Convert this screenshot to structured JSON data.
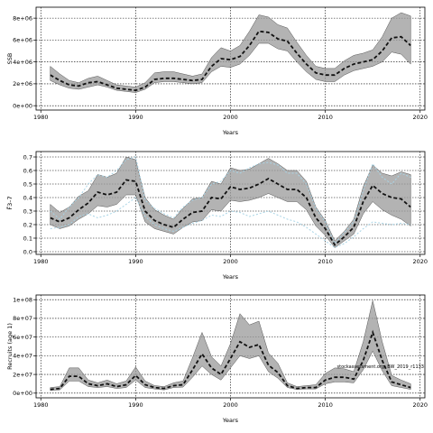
{
  "chart_data": [
    {
      "type": "line",
      "xlabel": "Years",
      "ylabel": "SSB",
      "xlim": [
        1979.5,
        2020.5
      ],
      "ylim": [
        -400000,
        9000000
      ],
      "xticks": [
        1980,
        1990,
        2000,
        2010,
        2020
      ],
      "yticks": [
        0,
        2000000,
        4000000,
        6000000,
        8000000
      ],
      "ytick_labels": [
        "0e+00",
        "2e+06",
        "4e+06",
        "6e+06",
        "8e+06"
      ],
      "grid": true,
      "x": [
        1981,
        1982,
        1983,
        1984,
        1985,
        1986,
        1987,
        1988,
        1989,
        1990,
        1991,
        1992,
        1993,
        1994,
        1995,
        1996,
        1997,
        1998,
        1999,
        2000,
        2001,
        2002,
        2003,
        2004,
        2005,
        2006,
        2007,
        2008,
        2009,
        2010,
        2011,
        2012,
        2013,
        2014,
        2015,
        2016,
        2017,
        2018,
        2019
      ],
      "series": [
        {
          "role": "median",
          "values": [
            2800000,
            2300000,
            1900000,
            1800000,
            2100000,
            2200000,
            1900000,
            1600000,
            1500000,
            1400000,
            1700000,
            2400000,
            2500000,
            2500000,
            2400000,
            2300000,
            2400000,
            3600000,
            4300000,
            4200000,
            4500000,
            5500000,
            6800000,
            6700000,
            6100000,
            5900000,
            4800000,
            3800000,
            3000000,
            2800000,
            2800000,
            3400000,
            3800000,
            4000000,
            4200000,
            5000000,
            6200000,
            6300000,
            5500000
          ]
        },
        {
          "role": "lower",
          "values": [
            2300000,
            1900000,
            1600000,
            1500000,
            1700000,
            1900000,
            1700000,
            1400000,
            1300000,
            1200000,
            1500000,
            2100000,
            2200000,
            2200000,
            2100000,
            2000000,
            2100000,
            3100000,
            3600000,
            3500000,
            3800000,
            4600000,
            5700000,
            5700000,
            5200000,
            5000000,
            4000000,
            3100000,
            2400000,
            2200000,
            2200000,
            2800000,
            3200000,
            3400000,
            3600000,
            4000000,
            4900000,
            4700000,
            3800000
          ]
        },
        {
          "role": "upper",
          "values": [
            3600000,
            2900000,
            2300000,
            2100000,
            2500000,
            2700000,
            2300000,
            1900000,
            1800000,
            1700000,
            2100000,
            3000000,
            3100000,
            3100000,
            2900000,
            2700000,
            2900000,
            4400000,
            5300000,
            5000000,
            5500000,
            6800000,
            8300000,
            8100000,
            7400000,
            7100000,
            5800000,
            4600000,
            3600000,
            3400000,
            3400000,
            4100000,
            4600000,
            4800000,
            5100000,
            6300000,
            8000000,
            8500000,
            8200000
          ]
        }
      ]
    },
    {
      "type": "line",
      "xlabel": "Years",
      "ylabel": "F̄3–7",
      "xlim": [
        1979.5,
        2020.5
      ],
      "ylim": [
        -0.02,
        0.74
      ],
      "xticks": [
        1980,
        1990,
        2000,
        2010,
        2020
      ],
      "yticks": [
        0.0,
        0.1,
        0.2,
        0.3,
        0.4,
        0.5,
        0.6,
        0.7
      ],
      "ytick_labels": [
        "0.0",
        "0.1",
        "0.2",
        "0.3",
        "0.4",
        "0.5",
        "0.6",
        "0.7"
      ],
      "grid": true,
      "x": [
        1981,
        1982,
        1983,
        1984,
        1985,
        1986,
        1987,
        1988,
        1989,
        1990,
        1991,
        1992,
        1993,
        1994,
        1995,
        1996,
        1997,
        1998,
        1999,
        2000,
        2001,
        2002,
        2003,
        2004,
        2005,
        2006,
        2007,
        2008,
        2009,
        2010,
        2011,
        2012,
        2013,
        2014,
        2015,
        2016,
        2017,
        2018,
        2019
      ],
      "series": [
        {
          "role": "median",
          "values": [
            0.25,
            0.22,
            0.25,
            0.31,
            0.36,
            0.44,
            0.42,
            0.44,
            0.53,
            0.52,
            0.3,
            0.23,
            0.2,
            0.18,
            0.24,
            0.29,
            0.3,
            0.4,
            0.39,
            0.48,
            0.46,
            0.47,
            0.5,
            0.54,
            0.5,
            0.46,
            0.46,
            0.4,
            0.25,
            0.17,
            0.05,
            0.11,
            0.18,
            0.37,
            0.49,
            0.43,
            0.4,
            0.39,
            0.33
          ]
        },
        {
          "role": "lower",
          "values": [
            0.2,
            0.17,
            0.19,
            0.24,
            0.28,
            0.34,
            0.33,
            0.35,
            0.42,
            0.42,
            0.22,
            0.17,
            0.15,
            0.13,
            0.18,
            0.22,
            0.23,
            0.31,
            0.3,
            0.38,
            0.37,
            0.38,
            0.4,
            0.43,
            0.4,
            0.37,
            0.37,
            0.31,
            0.19,
            0.12,
            0.03,
            0.08,
            0.13,
            0.28,
            0.37,
            0.31,
            0.27,
            0.24,
            0.19
          ]
        },
        {
          "role": "upper",
          "values": [
            0.35,
            0.29,
            0.33,
            0.41,
            0.45,
            0.57,
            0.55,
            0.58,
            0.7,
            0.68,
            0.4,
            0.31,
            0.27,
            0.24,
            0.32,
            0.39,
            0.4,
            0.52,
            0.5,
            0.62,
            0.6,
            0.61,
            0.65,
            0.69,
            0.65,
            0.6,
            0.6,
            0.52,
            0.33,
            0.23,
            0.08,
            0.15,
            0.24,
            0.48,
            0.64,
            0.58,
            0.56,
            0.59,
            0.57
          ]
        },
        {
          "role": "iteration",
          "values": [
            0.17,
            0.18,
            0.2,
            0.26,
            0.28,
            0.25,
            0.27,
            0.3,
            0.35,
            0.4,
            0.26,
            0.2,
            0.17,
            0.15,
            0.18,
            0.21,
            0.23,
            0.27,
            0.26,
            0.3,
            0.29,
            0.26,
            0.28,
            0.3,
            0.27,
            0.24,
            0.22,
            0.18,
            0.13,
            0.08,
            0.03,
            0.06,
            0.11,
            0.17,
            0.22,
            0.21,
            0.2,
            0.21,
            0.2
          ]
        },
        {
          "role": "iteration",
          "values": [
            0.3,
            0.24,
            0.33,
            0.4,
            0.5,
            0.57,
            0.55,
            0.6,
            0.68,
            0.7,
            0.38,
            0.32,
            0.28,
            0.25,
            0.33,
            0.38,
            0.4,
            0.5,
            0.52,
            0.6,
            0.58,
            0.62,
            0.65,
            0.66,
            0.64,
            0.58,
            0.58,
            0.5,
            0.32,
            0.22,
            0.06,
            0.14,
            0.22,
            0.45,
            0.65,
            0.55,
            0.5,
            0.58,
            0.55
          ]
        }
      ]
    },
    {
      "type": "line",
      "xlabel": "Years",
      "ylabel": "Recruits (age 1)",
      "xlim": [
        1979.5,
        2020.5
      ],
      "ylim": [
        -5000000,
        105000000
      ],
      "xticks": [
        1980,
        1990,
        2000,
        2010,
        2020
      ],
      "yticks": [
        0,
        20000000,
        40000000,
        60000000,
        80000000,
        100000000
      ],
      "ytick_labels": [
        "0e+00",
        "2e+07",
        "4e+07",
        "6e+07",
        "8e+07",
        "1e+08"
      ],
      "grid": true,
      "annotation": "stockassessment.org, BW_2019_r1133",
      "x": [
        1981,
        1982,
        1983,
        1984,
        1985,
        1986,
        1987,
        1988,
        1989,
        1990,
        1991,
        1992,
        1993,
        1994,
        1995,
        1996,
        1997,
        1998,
        1999,
        2000,
        2001,
        2002,
        2003,
        2004,
        2005,
        2006,
        2007,
        2008,
        2009,
        2010,
        2011,
        2012,
        2013,
        2014,
        2015,
        2016,
        2017,
        2018,
        2019
      ],
      "series": [
        {
          "role": "median",
          "values": [
            4000000,
            5000000,
            18000000,
            18000000,
            10000000,
            8000000,
            10000000,
            7000000,
            9000000,
            19000000,
            9000000,
            6000000,
            5000000,
            8000000,
            9000000,
            25000000,
            42000000,
            27000000,
            20000000,
            37000000,
            55000000,
            49000000,
            52000000,
            30000000,
            22000000,
            8000000,
            5000000,
            6000000,
            6000000,
            14000000,
            17000000,
            17000000,
            15000000,
            35000000,
            65000000,
            35000000,
            12000000,
            9000000,
            6000000
          ]
        },
        {
          "role": "lower",
          "values": [
            3000000,
            3500000,
            13000000,
            13000000,
            7000000,
            6000000,
            7000000,
            5000000,
            6000000,
            14000000,
            6000000,
            4500000,
            3500000,
            6000000,
            6500000,
            17000000,
            29000000,
            20000000,
            14000000,
            27000000,
            40000000,
            37000000,
            40000000,
            23000000,
            16000000,
            6000000,
            4000000,
            4500000,
            4500000,
            10000000,
            12000000,
            12000000,
            11000000,
            25000000,
            45000000,
            24000000,
            8000000,
            6000000,
            4000000
          ]
        },
        {
          "role": "upper",
          "values": [
            6000000,
            7000000,
            27000000,
            27000000,
            14000000,
            11000000,
            14000000,
            10000000,
            13000000,
            28000000,
            13000000,
            8000000,
            7000000,
            11000000,
            13000000,
            38000000,
            65000000,
            39000000,
            29000000,
            53000000,
            85000000,
            73000000,
            77000000,
            43000000,
            32000000,
            11000000,
            7000000,
            8000000,
            9000000,
            21000000,
            27000000,
            26000000,
            23000000,
            55000000,
            99000000,
            55000000,
            19000000,
            14000000,
            10000000
          ]
        }
      ]
    }
  ]
}
